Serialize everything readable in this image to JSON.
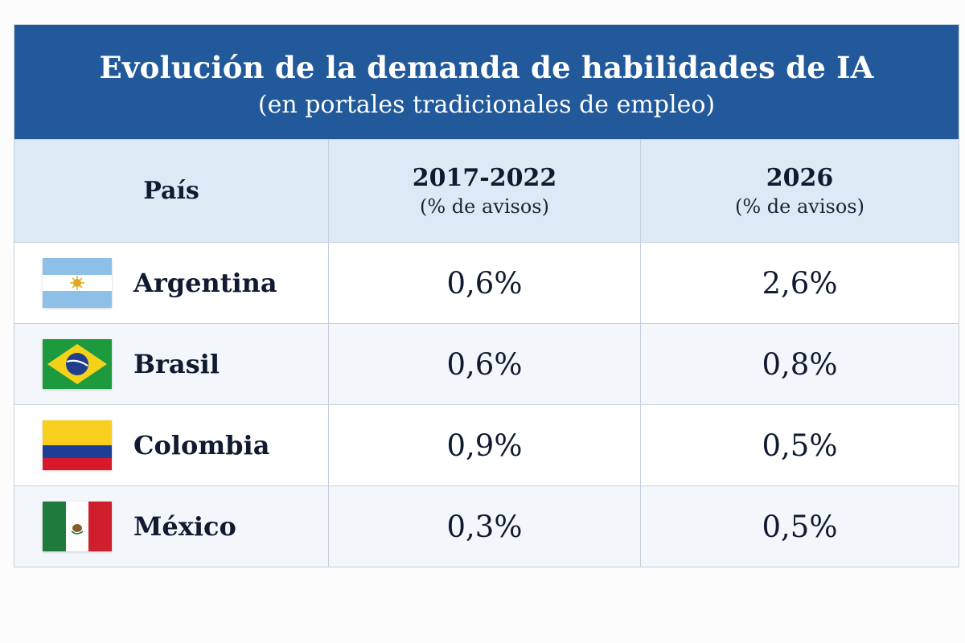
{
  "title": "Evolución de la demanda de habilidades de IA",
  "subtitle": "(en portales tradicionales de empleo)",
  "columns": {
    "country": "País",
    "period1": {
      "title": "2017-2022",
      "unit": "(% de avisos)"
    },
    "period2": {
      "title": "2026",
      "unit": "(% de avisos)"
    }
  },
  "rows": [
    {
      "country": "Argentina",
      "flag": "argentina-flag-icon",
      "v1": "0,6%",
      "v2": "2,6%"
    },
    {
      "country": "Brasil",
      "flag": "brazil-flag-icon",
      "v1": "0,6%",
      "v2": "0,8%"
    },
    {
      "country": "Colombia",
      "flag": "colombia-flag-icon",
      "v1": "0,9%",
      "v2": "0,5%"
    },
    {
      "country": "México",
      "flag": "mexico-flag-icon",
      "v1": "0,3%",
      "v2": "0,5%"
    }
  ],
  "colors": {
    "header": "#22599a",
    "column_header": "#dde9f5",
    "text": "#101a30"
  },
  "chart_data": {
    "type": "table",
    "title": "Evolución de la demanda de habilidades de IA",
    "subtitle": "(en portales tradicionales de empleo)",
    "columns": [
      "País",
      "2017-2022 (% de avisos)",
      "2026 (% de avisos)"
    ],
    "categories": [
      "Argentina",
      "Brasil",
      "Colombia",
      "México"
    ],
    "series": [
      {
        "name": "2017-2022",
        "values": [
          0.6,
          0.6,
          0.9,
          0.3
        ]
      },
      {
        "name": "2026",
        "values": [
          2.6,
          0.8,
          0.5,
          0.5
        ]
      }
    ]
  }
}
